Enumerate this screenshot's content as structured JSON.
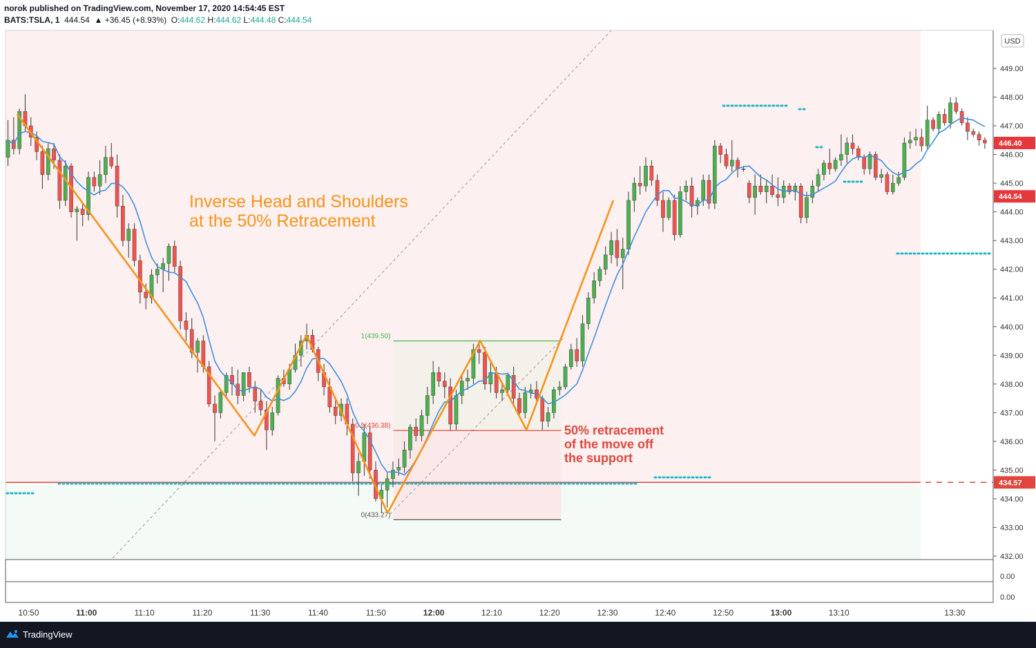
{
  "header": {
    "line1": "norok published on TradingView.com, November 17, 2020 14:54:45 EST",
    "symbol": "BATS:TSLA, 1",
    "last": "444.54",
    "change": "▲ +36.45 (+8.93%)",
    "o_label": "O:",
    "o": "444.62",
    "h_label": "H:",
    "h": "444.62",
    "l_label": "L:",
    "l": "444.48",
    "c_label": "C:",
    "c": "444.54"
  },
  "footer": {
    "brand": "TradingView"
  },
  "colors": {
    "up": "#4caf50",
    "down": "#ef5350",
    "ma": "#3d8fe0",
    "pattern": "#f7931a",
    "support": "#e0463d",
    "dots": "#1cb5c8",
    "fib_top": "#4caf50",
    "pink_bg": "#fdf0f0",
    "green_bg": "#f4faf6",
    "box_bg": "#f3f1ea"
  },
  "chart_data": {
    "type": "candlestick",
    "symbol": "BATS:TSLA",
    "interval": "1",
    "currency": "USD",
    "ylim": [
      432.0,
      449.0
    ],
    "yticks": [
      432.0,
      433.0,
      434.0,
      435.0,
      436.0,
      437.0,
      438.0,
      439.0,
      440.0,
      441.0,
      442.0,
      443.0,
      444.0,
      445.0,
      446.0,
      447.0,
      448.0,
      449.0
    ],
    "xtick_labels": [
      "10:50",
      "11:00",
      "11:10",
      "11:20",
      "11:30",
      "11:40",
      "11:50",
      "12:00",
      "12:10",
      "12:20",
      "12:30",
      "12:40",
      "12:50",
      "13:00",
      "13:10",
      "13:30"
    ],
    "price_tags": [
      {
        "label": "446.40",
        "value": 446.4
      },
      {
        "label": "444.54",
        "value": 444.54
      },
      {
        "label": "434.57",
        "value": 434.57
      }
    ],
    "support_level": 434.57,
    "fib": {
      "top_label": "1(439.50)",
      "top": 439.5,
      "mid_label": "0.5(436.38)",
      "mid": 436.38,
      "bottom_label": "0(433.27)",
      "bottom": 433.27
    },
    "annotations": {
      "title_line1": "Inverse Head and Shoulders",
      "title_line2": "at the 50% Retracement",
      "note_line1": "50% retracement",
      "note_line2": "of the move off",
      "note_line3": "the support"
    },
    "pattern_points": [
      {
        "t": "10:48",
        "price": 447.4
      },
      {
        "t": "11:29",
        "price": 436.2
      },
      {
        "t": "11:38",
        "price": 439.7
      },
      {
        "t": "11:52",
        "price": 433.5
      },
      {
        "t": "12:08",
        "price": 439.5
      },
      {
        "t": "12:16",
        "price": 436.4
      },
      {
        "t": "12:31",
        "price": 444.4
      }
    ],
    "indicator_panes": [
      {
        "value_label": "0.00"
      },
      {
        "value_label": "0.00"
      }
    ],
    "ohlc": [
      [
        445.9,
        447.2,
        445.6,
        446.5
      ],
      [
        446.5,
        447.3,
        446.0,
        446.2
      ],
      [
        446.2,
        447.6,
        446.0,
        447.5
      ],
      [
        447.5,
        448.1,
        446.8,
        447.0
      ],
      [
        447.0,
        447.3,
        446.3,
        446.6
      ],
      [
        446.6,
        446.8,
        445.8,
        446.1
      ],
      [
        446.1,
        446.3,
        444.8,
        445.3
      ],
      [
        445.3,
        446.4,
        445.1,
        446.2
      ],
      [
        446.2,
        446.4,
        445.5,
        445.8
      ],
      [
        445.8,
        446.0,
        444.1,
        444.4
      ],
      [
        444.4,
        445.8,
        444.2,
        445.6
      ],
      [
        445.6,
        445.7,
        443.8,
        444.0
      ],
      [
        444.0,
        444.2,
        443.0,
        444.1
      ],
      [
        444.1,
        444.3,
        443.5,
        443.9
      ],
      [
        443.9,
        445.4,
        443.7,
        445.2
      ],
      [
        445.2,
        445.4,
        444.7,
        444.9
      ],
      [
        444.9,
        445.8,
        444.6,
        445.3
      ],
      [
        445.3,
        446.3,
        445.0,
        445.9
      ],
      [
        445.9,
        446.4,
        445.5,
        445.6
      ],
      [
        445.6,
        446.0,
        443.8,
        444.2
      ],
      [
        444.2,
        444.6,
        442.8,
        443.0
      ],
      [
        443.0,
        443.6,
        442.4,
        443.4
      ],
      [
        443.4,
        443.6,
        442.1,
        442.3
      ],
      [
        442.3,
        442.5,
        440.8,
        441.2
      ],
      [
        441.2,
        441.5,
        440.6,
        441.0
      ],
      [
        441.0,
        442.0,
        440.8,
        441.8
      ],
      [
        441.8,
        442.2,
        441.5,
        442.0
      ],
      [
        442.0,
        442.4,
        441.2,
        442.2
      ],
      [
        442.2,
        442.9,
        441.6,
        442.8
      ],
      [
        442.8,
        443.0,
        441.9,
        442.1
      ],
      [
        442.1,
        442.3,
        439.9,
        440.2
      ],
      [
        440.2,
        440.5,
        439.5,
        439.9
      ],
      [
        439.9,
        440.3,
        438.9,
        439.1
      ],
      [
        439.1,
        439.6,
        438.4,
        439.5
      ],
      [
        439.5,
        439.7,
        438.4,
        438.6
      ],
      [
        438.6,
        438.8,
        437.2,
        437.3
      ],
      [
        437.3,
        437.6,
        436.0,
        437.0
      ],
      [
        437.0,
        437.8,
        436.8,
        437.7
      ],
      [
        437.7,
        438.4,
        437.5,
        438.3
      ],
      [
        438.3,
        438.6,
        437.6,
        438.0
      ],
      [
        438.0,
        438.5,
        437.3,
        437.6
      ],
      [
        437.6,
        438.4,
        437.4,
        438.4
      ],
      [
        438.4,
        438.6,
        437.7,
        437.9
      ],
      [
        437.9,
        438.1,
        437.0,
        437.4
      ],
      [
        437.4,
        437.8,
        436.9,
        437.1
      ],
      [
        437.1,
        437.4,
        435.7,
        436.4
      ],
      [
        436.4,
        437.2,
        436.2,
        437.0
      ],
      [
        437.0,
        438.3,
        436.9,
        438.2
      ],
      [
        438.2,
        438.5,
        437.9,
        438.0
      ],
      [
        438.0,
        438.7,
        437.8,
        438.5
      ],
      [
        438.5,
        439.4,
        438.4,
        439.0
      ],
      [
        439.0,
        439.7,
        438.6,
        439.5
      ],
      [
        439.5,
        440.1,
        439.2,
        439.7
      ],
      [
        439.7,
        439.9,
        439.1,
        439.2
      ],
      [
        439.2,
        439.3,
        438.1,
        438.4
      ],
      [
        438.4,
        438.7,
        437.6,
        437.9
      ],
      [
        437.9,
        438.2,
        437.0,
        437.2
      ],
      [
        437.2,
        437.5,
        436.6,
        436.9
      ],
      [
        436.9,
        437.5,
        436.7,
        437.3
      ],
      [
        437.3,
        437.5,
        436.2,
        436.6
      ],
      [
        436.6,
        436.8,
        434.6,
        434.9
      ],
      [
        434.9,
        435.6,
        434.1,
        435.3
      ],
      [
        435.3,
        436.6,
        434.8,
        436.3
      ],
      [
        436.3,
        436.5,
        434.7,
        435.0
      ],
      [
        435.0,
        435.3,
        433.9,
        434.0
      ],
      [
        434.0,
        434.5,
        433.5,
        434.3
      ],
      [
        434.3,
        434.9,
        433.7,
        434.7
      ],
      [
        434.7,
        435.3,
        434.4,
        435.0
      ],
      [
        435.0,
        435.4,
        434.8,
        435.1
      ],
      [
        435.1,
        436.0,
        434.9,
        435.7
      ],
      [
        435.7,
        436.6,
        435.4,
        436.5
      ],
      [
        436.5,
        436.8,
        436.0,
        436.2
      ],
      [
        436.2,
        437.1,
        436.0,
        436.9
      ],
      [
        436.9,
        437.9,
        436.6,
        437.6
      ],
      [
        437.6,
        438.8,
        437.3,
        438.4
      ],
      [
        438.4,
        438.6,
        437.9,
        438.1
      ],
      [
        438.1,
        438.4,
        437.5,
        437.9
      ],
      [
        437.9,
        438.2,
        436.4,
        436.6
      ],
      [
        436.6,
        437.8,
        436.4,
        437.6
      ],
      [
        437.6,
        438.3,
        437.3,
        438.1
      ],
      [
        438.1,
        438.5,
        437.8,
        438.2
      ],
      [
        438.2,
        439.4,
        438.0,
        439.2
      ],
      [
        439.2,
        439.5,
        438.7,
        439.1
      ],
      [
        439.1,
        439.3,
        437.8,
        438.0
      ],
      [
        438.0,
        438.8,
        437.7,
        438.4
      ],
      [
        438.4,
        438.6,
        437.5,
        437.7
      ],
      [
        437.7,
        438.0,
        437.4,
        437.8
      ],
      [
        437.8,
        438.4,
        437.6,
        438.3
      ],
      [
        438.3,
        438.6,
        437.2,
        437.5
      ],
      [
        437.5,
        437.7,
        436.9,
        437.0
      ],
      [
        437.0,
        437.9,
        436.8,
        437.7
      ],
      [
        437.7,
        438.0,
        437.5,
        437.8
      ],
      [
        437.8,
        438.1,
        437.3,
        437.5
      ],
      [
        437.5,
        437.6,
        436.4,
        436.7
      ],
      [
        436.7,
        437.2,
        436.5,
        437.0
      ],
      [
        437.0,
        437.9,
        436.8,
        437.8
      ],
      [
        437.8,
        438.1,
        437.6,
        437.9
      ],
      [
        437.9,
        438.7,
        437.8,
        438.6
      ],
      [
        438.6,
        439.4,
        438.5,
        439.2
      ],
      [
        439.2,
        439.6,
        438.6,
        438.8
      ],
      [
        438.8,
        440.4,
        438.6,
        440.1
      ],
      [
        440.1,
        441.2,
        439.9,
        441.0
      ],
      [
        441.0,
        441.9,
        440.8,
        441.6
      ],
      [
        441.6,
        442.1,
        441.4,
        442.0
      ],
      [
        442.0,
        442.8,
        441.8,
        442.5
      ],
      [
        442.5,
        443.3,
        442.2,
        443.0
      ],
      [
        443.0,
        443.4,
        442.1,
        442.4
      ],
      [
        442.4,
        443.1,
        441.3,
        442.7
      ],
      [
        442.7,
        444.7,
        442.5,
        444.4
      ],
      [
        444.4,
        445.2,
        444.0,
        445.0
      ],
      [
        445.0,
        445.6,
        444.6,
        444.9
      ],
      [
        444.9,
        445.9,
        444.7,
        445.6
      ],
      [
        445.6,
        445.8,
        444.9,
        445.1
      ],
      [
        445.1,
        445.3,
        444.2,
        444.4
      ],
      [
        444.4,
        444.7,
        443.3,
        443.8
      ],
      [
        443.8,
        444.5,
        443.7,
        444.4
      ],
      [
        444.4,
        444.6,
        443.0,
        443.2
      ],
      [
        443.2,
        444.9,
        443.1,
        444.7
      ],
      [
        444.7,
        445.1,
        444.4,
        444.9
      ],
      [
        444.9,
        445.2,
        443.8,
        444.2
      ],
      [
        444.2,
        444.5,
        443.9,
        444.4
      ],
      [
        444.4,
        445.3,
        444.2,
        445.1
      ],
      [
        445.1,
        445.3,
        444.1,
        444.3
      ],
      [
        444.3,
        446.5,
        444.1,
        446.3
      ],
      [
        446.3,
        446.4,
        445.7,
        446.0
      ],
      [
        446.0,
        446.2,
        445.5,
        445.6
      ],
      [
        445.6,
        446.5,
        445.4,
        445.8
      ],
      [
        445.8,
        445.9,
        445.2,
        445.5
      ],
      [
        445.5,
        445.6,
        445.4,
        445.5
      ],
      [
        445.0,
        445.1,
        444.3,
        444.5
      ],
      [
        444.5,
        445.3,
        443.9,
        444.9
      ],
      [
        444.9,
        445.3,
        444.6,
        444.7
      ],
      [
        444.7,
        445.1,
        444.3,
        444.9
      ],
      [
        444.9,
        445.3,
        444.5,
        444.6
      ],
      [
        444.6,
        445.2,
        444.2,
        444.5
      ],
      [
        444.5,
        445.1,
        444.3,
        444.9
      ],
      [
        444.9,
        445.0,
        444.6,
        444.7
      ],
      [
        444.7,
        445.0,
        444.4,
        444.9
      ],
      [
        444.9,
        445.0,
        443.6,
        443.8
      ],
      [
        443.8,
        444.7,
        443.6,
        444.5
      ],
      [
        444.5,
        445.1,
        444.3,
        444.9
      ],
      [
        444.9,
        445.5,
        444.7,
        445.3
      ],
      [
        445.3,
        445.8,
        445.1,
        445.7
      ],
      [
        445.7,
        446.2,
        445.3,
        445.5
      ],
      [
        445.5,
        445.9,
        445.4,
        445.8
      ],
      [
        445.8,
        446.7,
        445.6,
        446.0
      ],
      [
        446.0,
        446.6,
        445.7,
        446.4
      ],
      [
        446.4,
        446.7,
        446.0,
        446.2
      ],
      [
        446.2,
        446.3,
        445.8,
        445.9
      ],
      [
        445.9,
        446.0,
        445.3,
        445.5
      ],
      [
        445.5,
        446.1,
        445.3,
        446.0
      ],
      [
        446.0,
        446.1,
        445.1,
        445.2
      ],
      [
        445.2,
        445.5,
        445.0,
        445.3
      ],
      [
        445.3,
        445.4,
        444.6,
        444.7
      ],
      [
        444.7,
        445.3,
        444.6,
        445.0
      ],
      [
        445.0,
        445.4,
        444.9,
        445.2
      ],
      [
        445.2,
        446.6,
        445.1,
        446.4
      ],
      [
        446.4,
        446.8,
        446.2,
        446.5
      ],
      [
        446.5,
        446.9,
        446.3,
        446.6
      ],
      [
        446.6,
        446.9,
        446.1,
        446.3
      ],
      [
        446.3,
        447.7,
        446.2,
        447.2
      ],
      [
        447.2,
        447.3,
        446.8,
        446.9
      ],
      [
        446.9,
        447.5,
        446.7,
        447.4
      ],
      [
        447.4,
        447.6,
        447.0,
        447.1
      ],
      [
        447.1,
        448.0,
        446.9,
        447.8
      ],
      [
        447.8,
        448.0,
        447.4,
        447.5
      ],
      [
        447.5,
        447.6,
        447.0,
        447.1
      ],
      [
        447.1,
        447.3,
        446.5,
        446.8
      ],
      [
        446.8,
        446.9,
        446.6,
        446.7
      ],
      [
        446.7,
        446.8,
        446.3,
        446.5
      ],
      [
        446.5,
        446.6,
        446.2,
        446.4
      ]
    ]
  }
}
